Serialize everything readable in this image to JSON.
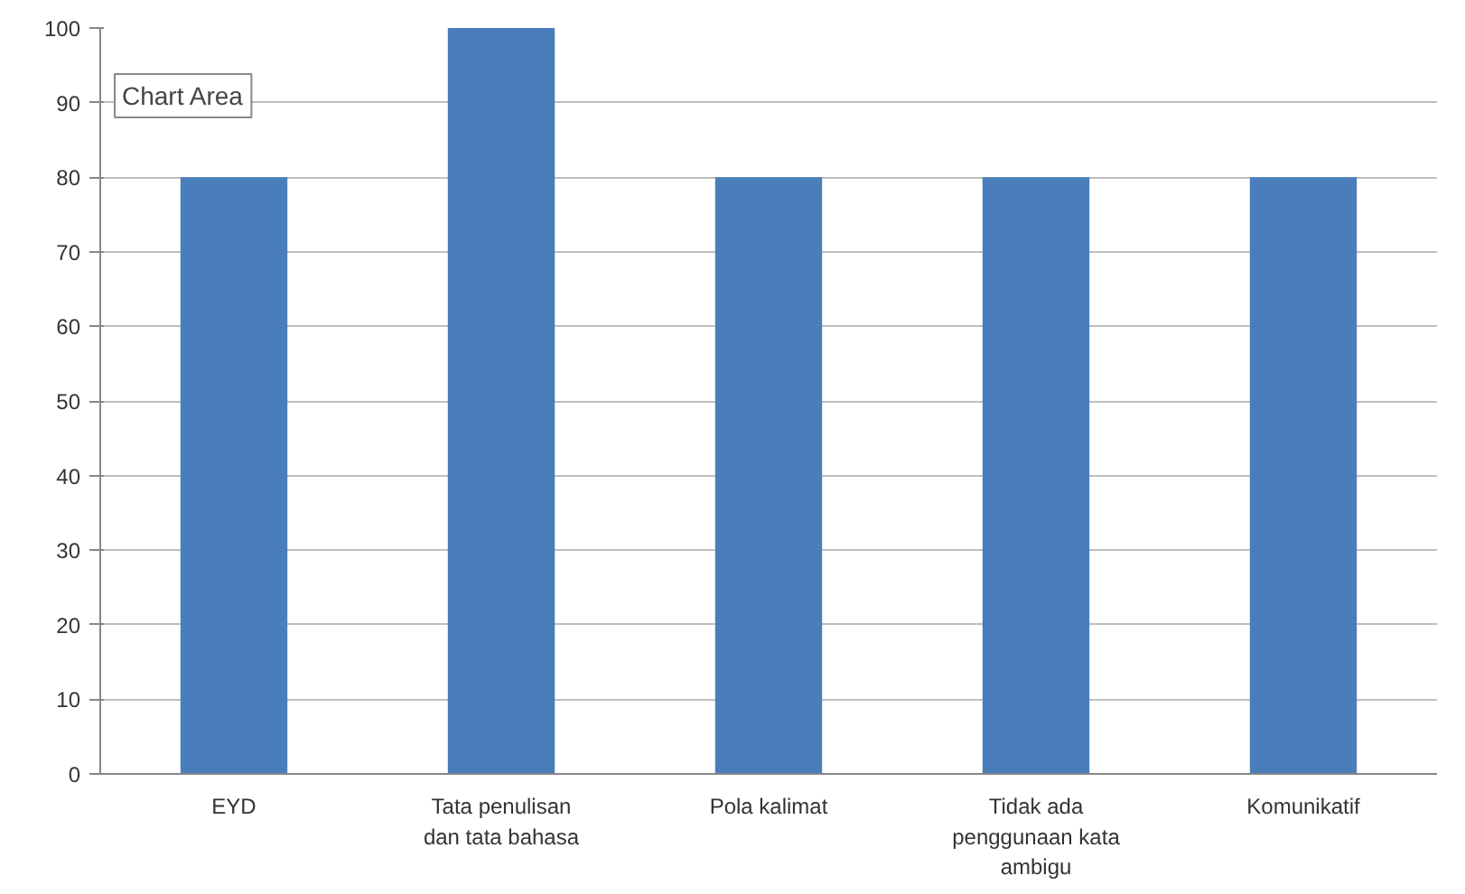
{
  "chart_data": {
    "type": "bar",
    "categories": [
      "EYD",
      "Tata penulisan dan tata bahasa",
      "Pola kalimat",
      "Tidak ada penggunaan kata ambigu",
      "Komunikatif"
    ],
    "values": [
      80,
      100,
      80,
      80,
      80
    ],
    "color": "#4a7ebb",
    "ylim": [
      0,
      100
    ],
    "yticks": [
      0,
      10,
      20,
      30,
      40,
      50,
      60,
      70,
      80,
      90,
      100
    ],
    "grid": "y",
    "annotations": [
      "Chart Area"
    ]
  }
}
